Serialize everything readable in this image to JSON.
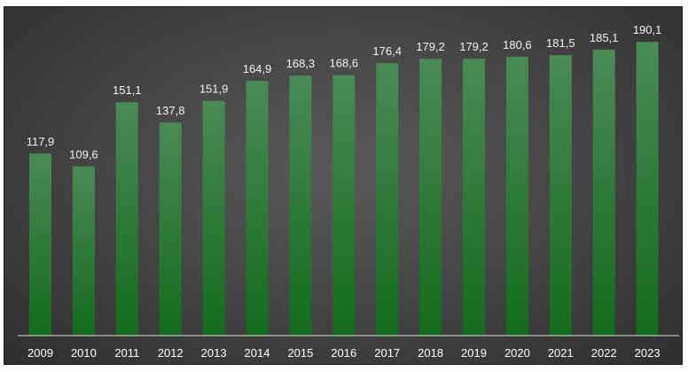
{
  "chart_data": {
    "type": "bar",
    "categories": [
      "2009",
      "2010",
      "2011",
      "2012",
      "2013",
      "2014",
      "2015",
      "2016",
      "2017",
      "2018",
      "2019",
      "2020",
      "2021",
      "2022",
      "2023"
    ],
    "values": [
      117.9,
      109.6,
      151.1,
      137.8,
      151.9,
      164.9,
      168.3,
      168.6,
      176.4,
      179.2,
      179.2,
      180.6,
      181.5,
      185.1,
      190.1
    ],
    "value_labels": [
      "117,9",
      "109,6",
      "151,1",
      "137,8",
      "151,9",
      "164,9",
      "168,3",
      "168,6",
      "176,4",
      "179,2",
      "179,2",
      "180,6",
      "181,5",
      "185,1",
      "190,1"
    ],
    "title": "",
    "xlabel": "",
    "ylabel": "",
    "ylim": [
      0,
      200
    ],
    "grid": false,
    "legend": "none",
    "colors": {
      "bar_top": "#4a8a56",
      "bar_bottom": "#136b1c",
      "background": "#474747",
      "axis_line": "#d9d9d9",
      "label_text": "#f2f2f2"
    }
  }
}
